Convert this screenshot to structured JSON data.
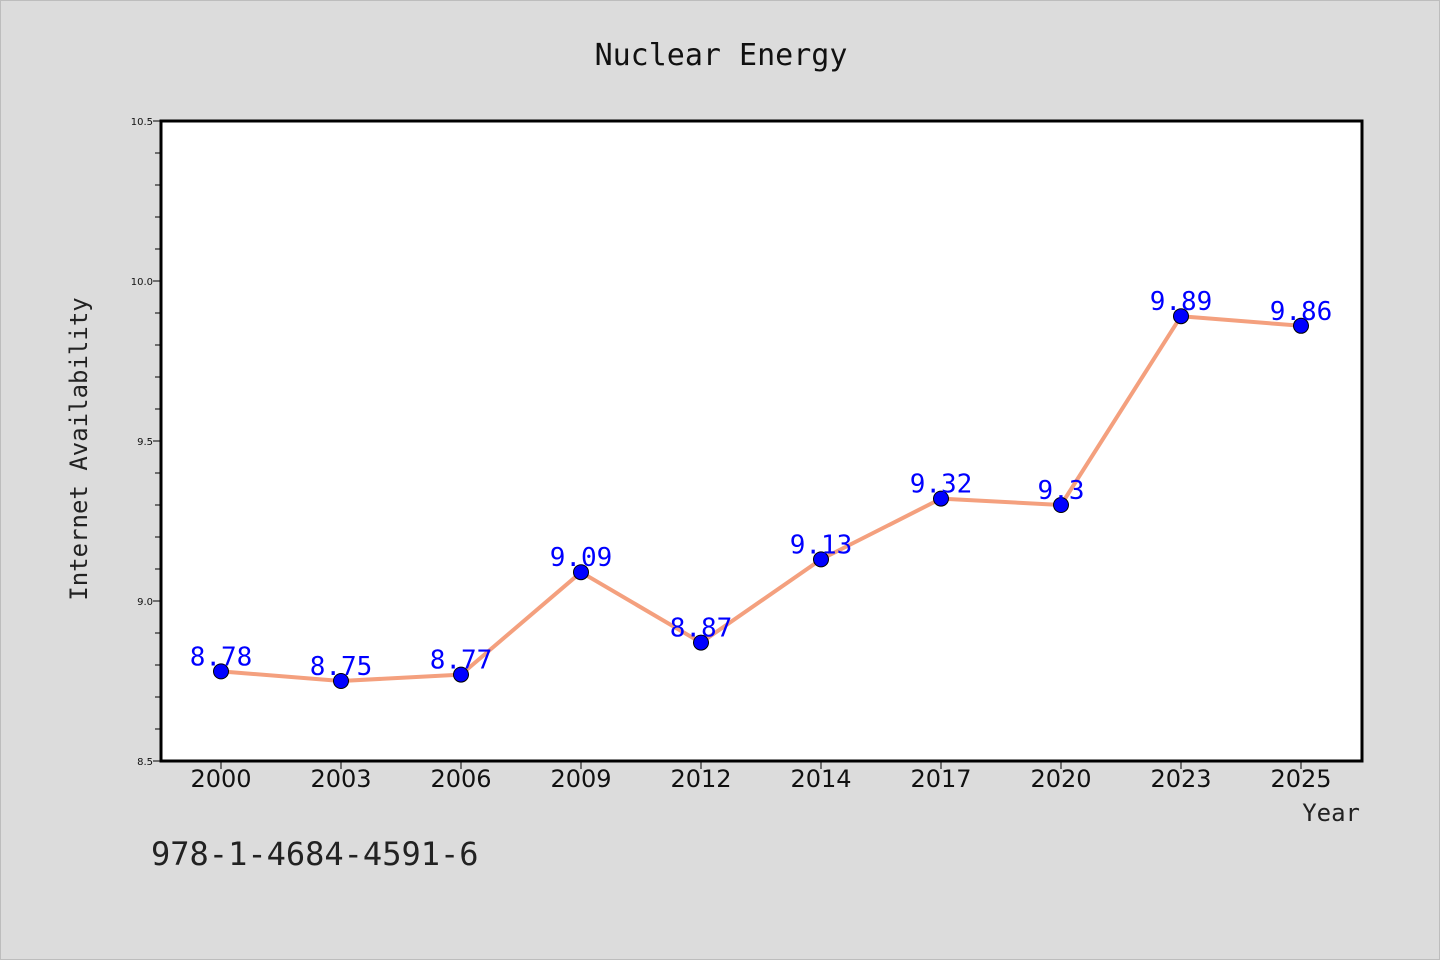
{
  "chart_data": {
    "type": "line",
    "title": "Nuclear Energy",
    "xlabel": "Year",
    "ylabel": "Internet Availability",
    "categories": [
      "2000",
      "2003",
      "2006",
      "2009",
      "2012",
      "2014",
      "2017",
      "2020",
      "2023",
      "2025"
    ],
    "values": [
      8.78,
      8.75,
      8.77,
      9.09,
      8.87,
      9.13,
      9.32,
      9.3,
      9.89,
      9.86
    ],
    "data_labels": [
      "8.78",
      "8.75",
      "8.77",
      "9.09",
      "8.87",
      "9.13",
      "9.32",
      "9.3",
      "9.89",
      "9.86"
    ],
    "ylim": [
      8.5,
      10.5
    ],
    "yticks": [
      "8.5",
      "9.0",
      "9.5",
      "10.0",
      "10.5"
    ],
    "grid": false,
    "colors": {
      "line": "#f4a07e",
      "marker": "#0000ff",
      "data_label": "#0000ff",
      "background": "#dcdcdc",
      "plot_background": "#ffffff"
    }
  },
  "footer": {
    "isbn": "978-1-4684-4591-6"
  }
}
